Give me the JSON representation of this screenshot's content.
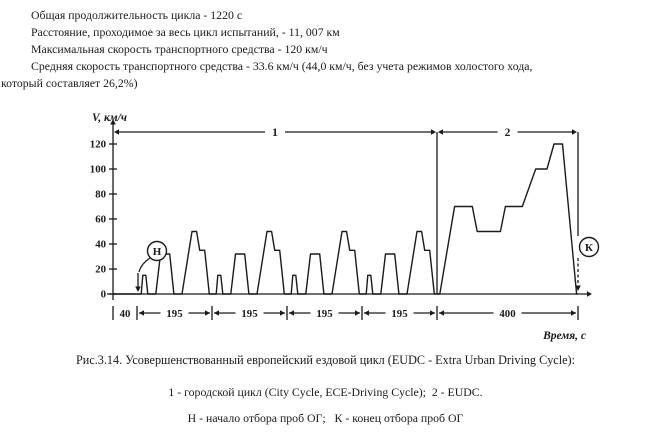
{
  "page": {
    "paper_color": "#ffffff",
    "ink_color": "#1a1a1a"
  },
  "document": {
    "intro_lines": [
      "Общая продолжительность цикла - 1220 с",
      "Расстояние, проходимое за весь цикл испытаний, - 11, 007 км",
      "Максимальная скорость транспортного средства - 120 км/ч",
      "Средняя скорость транспортного средства - 33.6 км/ч (44,0 км/ч, без учета режимов холостого хода,",
      "который составляет 26,2%)"
    ],
    "caption": {
      "line1": "Рис.3.14. Усовершенствованный европейский ездовой цикл (EUDC - Extra Urban Driving Cycle):",
      "line2": "1 - городской цикл (City Cycle, ECE-Driving Cycle);  2 - EUDC.",
      "line3": "Н - начало отбора проб ОГ;   К - конец отбора проб ОГ"
    }
  },
  "chart_data": {
    "type": "line",
    "title": "Рис.3.14. Усовершенствованный европейский ездовой цикл (EUDC - Extra Urban Driving Cycle)",
    "ylabel": "V, км/ч",
    "xlabel": "Время, с",
    "ylim": [
      0,
      130
    ],
    "xlim": [
      0,
      1220
    ],
    "yticks": [
      0,
      20,
      40,
      60,
      80,
      100,
      120
    ],
    "grid": false,
    "legend": "none",
    "line_color": "#1b1b1b",
    "sections": [
      {
        "label": "1",
        "from_s": 0,
        "to_s": 820
      },
      {
        "label": "2",
        "from_s": 820,
        "to_s": 1220
      }
    ],
    "duration_segments": [
      {
        "label": "40",
        "from_s": 0,
        "to_s": 40
      },
      {
        "label": "195",
        "from_s": 40,
        "to_s": 235
      },
      {
        "label": "195",
        "from_s": 235,
        "to_s": 430
      },
      {
        "label": "195",
        "from_s": 430,
        "to_s": 625
      },
      {
        "label": "195",
        "from_s": 625,
        "to_s": 820
      },
      {
        "label": "400",
        "from_s": 820,
        "to_s": 1220
      }
    ],
    "markers": [
      {
        "label": "Н",
        "t_s": 40
      },
      {
        "label": "К",
        "t_s": 1220
      }
    ],
    "series": [
      {
        "name": "speed-profile",
        "points": [
          [
            0,
            0
          ],
          [
            40,
            0
          ],
          [
            51,
            0
          ],
          [
            55,
            15
          ],
          [
            63,
            15
          ],
          [
            68,
            0
          ],
          [
            89,
            0
          ],
          [
            101,
            32
          ],
          [
            125,
            32
          ],
          [
            136,
            0
          ],
          [
            157,
            0
          ],
          [
            183,
            50
          ],
          [
            195,
            50
          ],
          [
            203,
            35
          ],
          [
            216,
            35
          ],
          [
            228,
            0
          ],
          [
            235,
            0
          ],
          [
            246,
            0
          ],
          [
            250,
            15
          ],
          [
            258,
            15
          ],
          [
            263,
            0
          ],
          [
            284,
            0
          ],
          [
            296,
            32
          ],
          [
            320,
            32
          ],
          [
            331,
            0
          ],
          [
            352,
            0
          ],
          [
            378,
            50
          ],
          [
            390,
            50
          ],
          [
            398,
            35
          ],
          [
            411,
            35
          ],
          [
            423,
            0
          ],
          [
            430,
            0
          ],
          [
            441,
            0
          ],
          [
            445,
            15
          ],
          [
            453,
            15
          ],
          [
            458,
            0
          ],
          [
            479,
            0
          ],
          [
            491,
            32
          ],
          [
            515,
            32
          ],
          [
            526,
            0
          ],
          [
            547,
            0
          ],
          [
            573,
            50
          ],
          [
            585,
            50
          ],
          [
            593,
            35
          ],
          [
            606,
            35
          ],
          [
            618,
            0
          ],
          [
            625,
            0
          ],
          [
            636,
            0
          ],
          [
            640,
            15
          ],
          [
            648,
            15
          ],
          [
            653,
            0
          ],
          [
            674,
            0
          ],
          [
            686,
            32
          ],
          [
            710,
            32
          ],
          [
            721,
            0
          ],
          [
            742,
            0
          ],
          [
            768,
            50
          ],
          [
            780,
            50
          ],
          [
            788,
            35
          ],
          [
            801,
            35
          ],
          [
            813,
            0
          ],
          [
            820,
            0
          ],
          [
            828,
            0
          ],
          [
            870,
            70
          ],
          [
            920,
            70
          ],
          [
            934,
            50
          ],
          [
            1000,
            50
          ],
          [
            1014,
            70
          ],
          [
            1062,
            70
          ],
          [
            1100,
            100
          ],
          [
            1132,
            100
          ],
          [
            1152,
            120
          ],
          [
            1176,
            120
          ],
          [
            1216,
            0
          ],
          [
            1220,
            0
          ]
        ]
      }
    ]
  }
}
